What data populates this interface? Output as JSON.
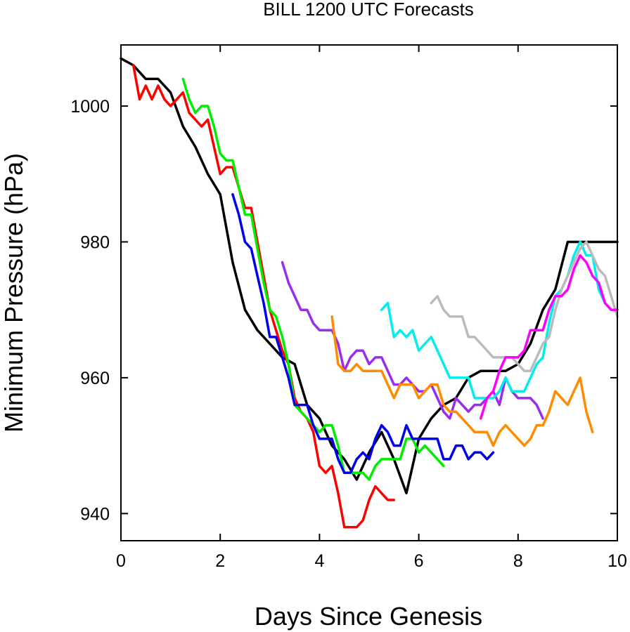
{
  "chart_data": {
    "type": "line",
    "title": "BILL 1200 UTC Forecasts",
    "xlabel": "Days Since Genesis",
    "ylabel": "Minimum Pressure (hPa)",
    "xlim": [
      0,
      10
    ],
    "ylim": [
      936,
      1009
    ],
    "xticks": [
      0,
      2,
      4,
      6,
      8,
      10
    ],
    "xtick_labels": [
      "0",
      "2",
      "4",
      "6",
      "8",
      "10"
    ],
    "yticks": [
      940,
      960,
      980,
      1000
    ],
    "ytick_labels": [
      "940",
      "960",
      "980",
      "1000"
    ],
    "grid": false,
    "legend": "none",
    "series": [
      {
        "color": "#000000",
        "x": [
          0,
          0.25,
          0.5,
          0.75,
          1.0,
          1.25,
          1.5,
          1.75,
          2.0,
          2.25,
          2.5,
          2.75,
          3.0,
          3.25,
          3.5,
          3.75,
          4.0,
          4.25,
          4.5,
          4.75,
          5.0,
          5.25,
          5.5,
          5.75,
          6.0,
          6.25,
          6.5,
          6.75,
          7.0,
          7.25,
          7.5,
          7.75,
          8.0,
          8.25,
          8.5,
          8.75,
          9.0,
          9.25,
          9.5,
          9.75,
          10.0
        ],
        "y": [
          1007,
          1006,
          1004,
          1004,
          1002,
          997,
          994,
          990,
          987,
          977,
          970,
          967,
          965,
          963,
          962,
          956,
          954,
          950,
          948,
          945,
          949,
          952,
          948,
          943,
          951,
          954,
          956,
          957,
          960,
          961,
          961,
          961,
          962,
          965,
          970,
          973,
          980,
          980,
          980,
          980,
          980
        ]
      },
      {
        "color": "#ff0000",
        "x": [
          0.25,
          0.375,
          0.5,
          0.625,
          0.75,
          0.875,
          1.0,
          1.125,
          1.25,
          1.375,
          1.5,
          1.625,
          1.75,
          1.875,
          2.0,
          2.125,
          2.25,
          2.375,
          2.5,
          2.625,
          2.75,
          2.875,
          3.0,
          3.125,
          3.25,
          3.375,
          3.5,
          3.625,
          3.75,
          3.875,
          4.0,
          4.125,
          4.25,
          4.375,
          4.5,
          4.625,
          4.75,
          4.875,
          5.0,
          5.125,
          5.25,
          5.375,
          5.5
        ],
        "y": [
          1006,
          1001,
          1003,
          1001,
          1003,
          1001,
          1000,
          1001,
          1002,
          999,
          998,
          997,
          998,
          994,
          990,
          991,
          991,
          988,
          985,
          985,
          980,
          975,
          970,
          967,
          964,
          962,
          957,
          955,
          954,
          952,
          947,
          946,
          947,
          943,
          938,
          938,
          938,
          939,
          942,
          944,
          943,
          942,
          942
        ]
      },
      {
        "color": "#00ee00",
        "x": [
          1.25,
          1.375,
          1.5,
          1.625,
          1.75,
          1.875,
          2.0,
          2.125,
          2.25,
          2.375,
          2.5,
          2.625,
          2.75,
          2.875,
          3.0,
          3.125,
          3.25,
          3.375,
          3.5,
          3.625,
          3.75,
          3.875,
          4.0,
          4.125,
          4.25,
          4.375,
          4.5,
          4.625,
          4.75,
          4.875,
          5.0,
          5.125,
          5.25,
          5.375,
          5.5,
          5.625,
          5.75,
          5.875,
          6.0,
          6.125,
          6.25,
          6.375,
          6.5
        ],
        "y": [
          1004,
          1001,
          999,
          1000,
          1000,
          997,
          993,
          992,
          992,
          988,
          984,
          984,
          979,
          974,
          970,
          969,
          966,
          962,
          956,
          955,
          954,
          953,
          952,
          953,
          953,
          950,
          946,
          946,
          946,
          946,
          945,
          947,
          948,
          948,
          948,
          948,
          951,
          951,
          949,
          950,
          949,
          948,
          947
        ]
      },
      {
        "color": "#0000ee",
        "x": [
          2.25,
          2.375,
          2.5,
          2.625,
          2.75,
          2.875,
          3.0,
          3.125,
          3.25,
          3.375,
          3.5,
          3.625,
          3.75,
          3.875,
          4.0,
          4.125,
          4.25,
          4.375,
          4.5,
          4.625,
          4.75,
          4.875,
          5.0,
          5.125,
          5.25,
          5.375,
          5.5,
          5.625,
          5.75,
          5.875,
          6.0,
          6.125,
          6.25,
          6.375,
          6.5,
          6.625,
          6.75,
          6.875,
          7.0,
          7.125,
          7.25,
          7.375,
          7.5
        ],
        "y": [
          987,
          984,
          980,
          979,
          975,
          971,
          966,
          966,
          963,
          960,
          956,
          956,
          956,
          953,
          951,
          951,
          951,
          948,
          946,
          946,
          948,
          949,
          948,
          951,
          953,
          952,
          950,
          950,
          953,
          951,
          951,
          951,
          951,
          951,
          948,
          948,
          950,
          950,
          948,
          949,
          949,
          948,
          949
        ]
      },
      {
        "color": "#9a2cee",
        "x": [
          3.25,
          3.375,
          3.5,
          3.625,
          3.75,
          3.875,
          4.0,
          4.125,
          4.25,
          4.375,
          4.5,
          4.625,
          4.75,
          4.875,
          5.0,
          5.125,
          5.25,
          5.375,
          5.5,
          5.625,
          5.75,
          5.875,
          6.0,
          6.125,
          6.25,
          6.375,
          6.5,
          6.625,
          6.75,
          6.875,
          7.0,
          7.125,
          7.25,
          7.375,
          7.5,
          7.625,
          7.75,
          7.875,
          8.0,
          8.125,
          8.25,
          8.375,
          8.5
        ],
        "y": [
          977,
          974,
          972,
          970,
          970,
          968,
          967,
          967,
          967,
          965,
          961,
          963,
          964,
          964,
          962,
          963,
          963,
          961,
          959,
          959,
          960,
          959,
          958,
          958,
          959,
          957,
          955,
          954,
          957,
          956,
          955,
          956,
          956,
          957,
          958,
          956,
          960,
          958,
          957,
          957,
          957,
          956,
          954
        ]
      },
      {
        "color": "#ff8c00",
        "x": [
          4.25,
          4.375,
          4.5,
          4.625,
          4.75,
          4.875,
          5.0,
          5.125,
          5.25,
          5.375,
          5.5,
          5.625,
          5.75,
          5.875,
          6.0,
          6.125,
          6.25,
          6.375,
          6.5,
          6.625,
          6.75,
          6.875,
          7.0,
          7.125,
          7.25,
          7.375,
          7.5,
          7.625,
          7.75,
          7.875,
          8.0,
          8.125,
          8.25,
          8.375,
          8.5,
          8.625,
          8.75,
          8.875,
          9.0,
          9.125,
          9.25,
          9.375,
          9.5
        ],
        "y": [
          969,
          962,
          961,
          961,
          962,
          961,
          961,
          961,
          961,
          959,
          957,
          959,
          959,
          959,
          957,
          958,
          959,
          959,
          956,
          955,
          955,
          954,
          953,
          952,
          952,
          952,
          950,
          952,
          953,
          952,
          951,
          950,
          951,
          953,
          953,
          955,
          958,
          957,
          956,
          958,
          960,
          955,
          952
        ]
      },
      {
        "color": "#00eeee",
        "x": [
          5.25,
          5.375,
          5.5,
          5.625,
          5.75,
          5.875,
          6.0,
          6.125,
          6.25,
          6.375,
          6.5,
          6.625,
          6.75,
          6.875,
          7.0,
          7.125,
          7.25,
          7.375,
          7.5,
          7.625,
          7.75,
          7.875,
          8.0,
          8.125,
          8.25,
          8.375,
          8.5,
          8.625,
          8.75,
          8.875,
          9.0,
          9.125,
          9.25,
          9.375,
          9.5,
          9.625,
          9.75,
          9.875,
          10.0
        ],
        "y": [
          970,
          971,
          966,
          967,
          966,
          967,
          964,
          965,
          966,
          964,
          962,
          960,
          960,
          960,
          960,
          957,
          957,
          957,
          957,
          958,
          960,
          958,
          958,
          958,
          960,
          962,
          963,
          968,
          972,
          973,
          975,
          978,
          980,
          978,
          978,
          973,
          971,
          970,
          970
        ]
      },
      {
        "color": "#bbbbbb",
        "x": [
          6.25,
          6.375,
          6.5,
          6.625,
          6.75,
          6.875,
          7.0,
          7.125,
          7.25,
          7.375,
          7.5,
          7.625,
          7.75,
          7.875,
          8.0,
          8.125,
          8.25,
          8.375,
          8.5,
          8.625,
          8.75,
          8.875,
          9.0,
          9.125,
          9.25,
          9.375,
          9.5,
          9.625,
          9.75,
          9.875,
          10.0
        ],
        "y": [
          971,
          972,
          970,
          969,
          969,
          969,
          966,
          966,
          965,
          964,
          963,
          963,
          963,
          963,
          962,
          961,
          961,
          963,
          965,
          966,
          970,
          973,
          975,
          977,
          979,
          980,
          978,
          976,
          975,
          972,
          969
        ]
      },
      {
        "color": "#ff00ff",
        "x": [
          7.25,
          7.375,
          7.5,
          7.625,
          7.75,
          7.875,
          8.0,
          8.125,
          8.25,
          8.375,
          8.5,
          8.625,
          8.75,
          8.875,
          9.0,
          9.125,
          9.25,
          9.375,
          9.5,
          9.625,
          9.75,
          9.875,
          10.0
        ],
        "y": [
          954,
          957,
          958,
          961,
          963,
          963,
          963,
          964,
          967,
          967,
          967,
          970,
          972,
          972,
          973,
          976,
          978,
          977,
          975,
          974,
          971,
          970,
          970
        ]
      }
    ]
  }
}
